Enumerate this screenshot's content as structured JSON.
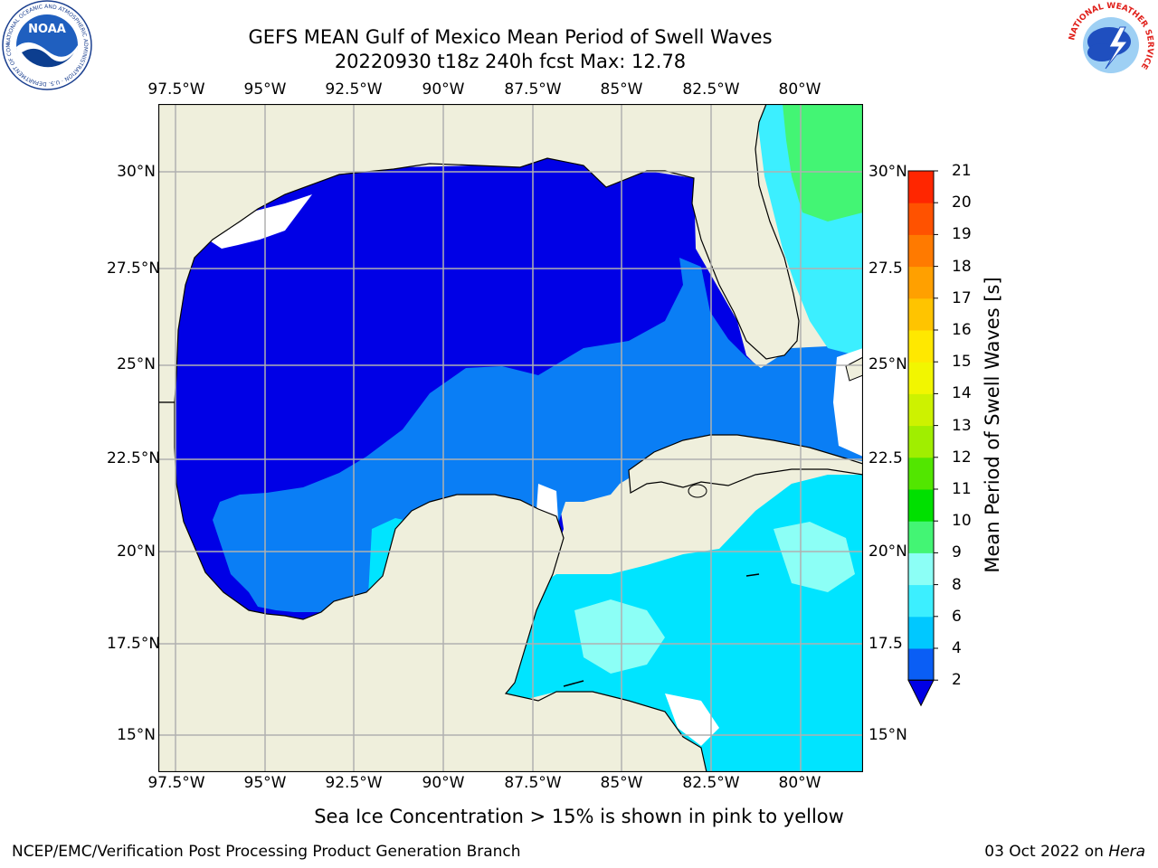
{
  "header": {
    "title_line1": "GEFS MEAN Gulf of Mexico Mean Period of Swell Waves",
    "title_line2": "20220930 t18z 240h fcst   Max: 12.78"
  },
  "logos": {
    "left": {
      "text": "NOAA",
      "ring_text": "NATIONAL OCEANIC AND ATMOSPHERIC ADMINISTRATION · U.S. DEPARTMENT OF COMMERCE"
    },
    "right": {
      "ring_text": "NATIONAL WEATHER SERVICE"
    }
  },
  "map": {
    "lon_labels": [
      "97.5°W",
      "95°W",
      "92.5°W",
      "90°W",
      "87.5°W",
      "85°W",
      "82.5°W",
      "80°W"
    ],
    "lat_labels_left": [
      "30°N",
      "27.5°N",
      "25°N",
      "22.5°N",
      "20°N",
      "17.5°N",
      "15°N"
    ],
    "lat_labels_right": [
      "30°N",
      "27.5",
      "25°N",
      "22.5",
      "20°N",
      "17.5",
      "15°N"
    ],
    "colors": {
      "land": "#efefdc",
      "coast": "#000000",
      "grid": "#b0b0b0"
    }
  },
  "colorbar": {
    "title": "Mean Period of Swell Waves [s]",
    "labels": [
      "2",
      "4",
      "6",
      "8",
      "9",
      "10",
      "11",
      "12",
      "13",
      "14",
      "15",
      "16",
      "17",
      "18",
      "19",
      "20",
      "21"
    ],
    "colors": [
      "#0a5ef5",
      "#00c8ff",
      "#3cefff",
      "#8cfff6",
      "#43f574",
      "#00e000",
      "#52e600",
      "#a0ee00",
      "#cdf200",
      "#f2f600",
      "#ffe800",
      "#ffc400",
      "#ffa000",
      "#ff7a00",
      "#ff5200",
      "#ff2600",
      "#ff0000"
    ],
    "extend_color": "#0000e6"
  },
  "footer": {
    "note": "Sea Ice Concentration > 15% is shown in pink to yellow",
    "left_credit": "NCEP/EMC/Verification Post Processing Product Generation Branch",
    "right_credit_prefix": "03 Oct 2022 on ",
    "right_credit_host": "Hera"
  }
}
